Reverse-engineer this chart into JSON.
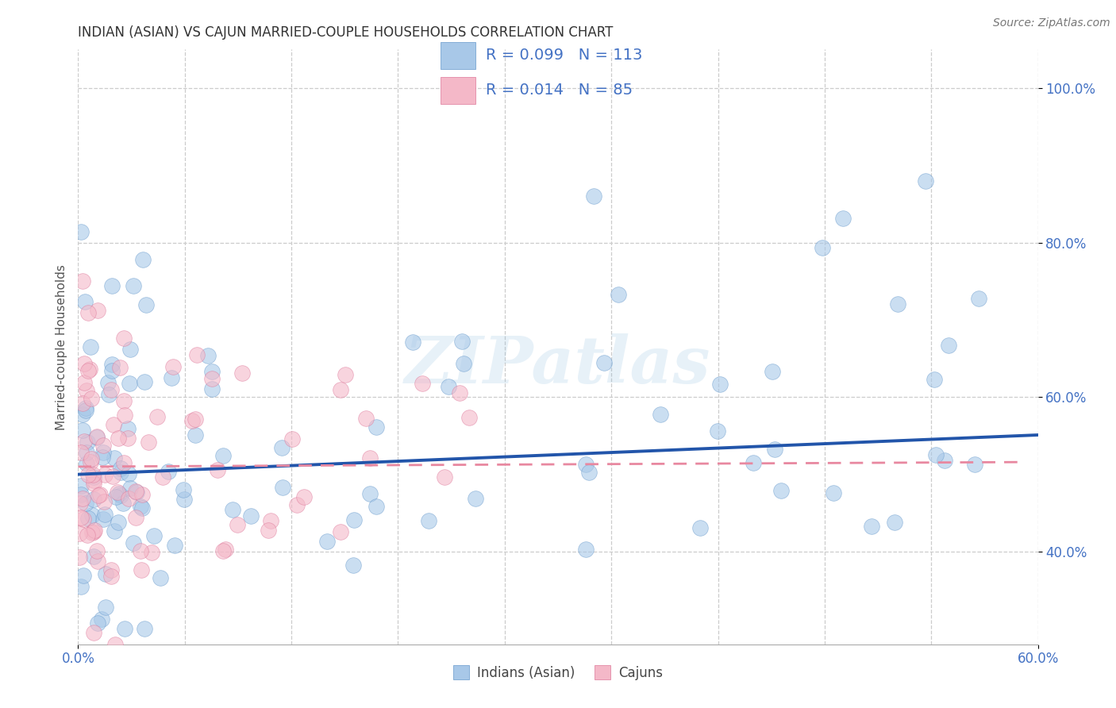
{
  "title": "INDIAN (ASIAN) VS CAJUN MARRIED-COUPLE HOUSEHOLDS CORRELATION CHART",
  "source_text": "Source: ZipAtlas.com",
  "ylabel": "Married-couple Households",
  "ytick_values": [
    0.4,
    0.6,
    0.8,
    1.0
  ],
  "xlim": [
    0.0,
    0.6
  ],
  "ylim": [
    0.28,
    1.05
  ],
  "legend_r1": "0.099",
  "legend_n1": "113",
  "legend_r2": "0.014",
  "legend_n2": "85",
  "series1_label": "Indians (Asian)",
  "series2_label": "Cajuns",
  "color_blue": "#a8c8e8",
  "color_pink": "#f4b8c8",
  "color_blue_line": "#2255aa",
  "color_pink_line": "#e888a0",
  "color_text_blue": "#4472c4",
  "watermark_text": "ZIPatlas"
}
